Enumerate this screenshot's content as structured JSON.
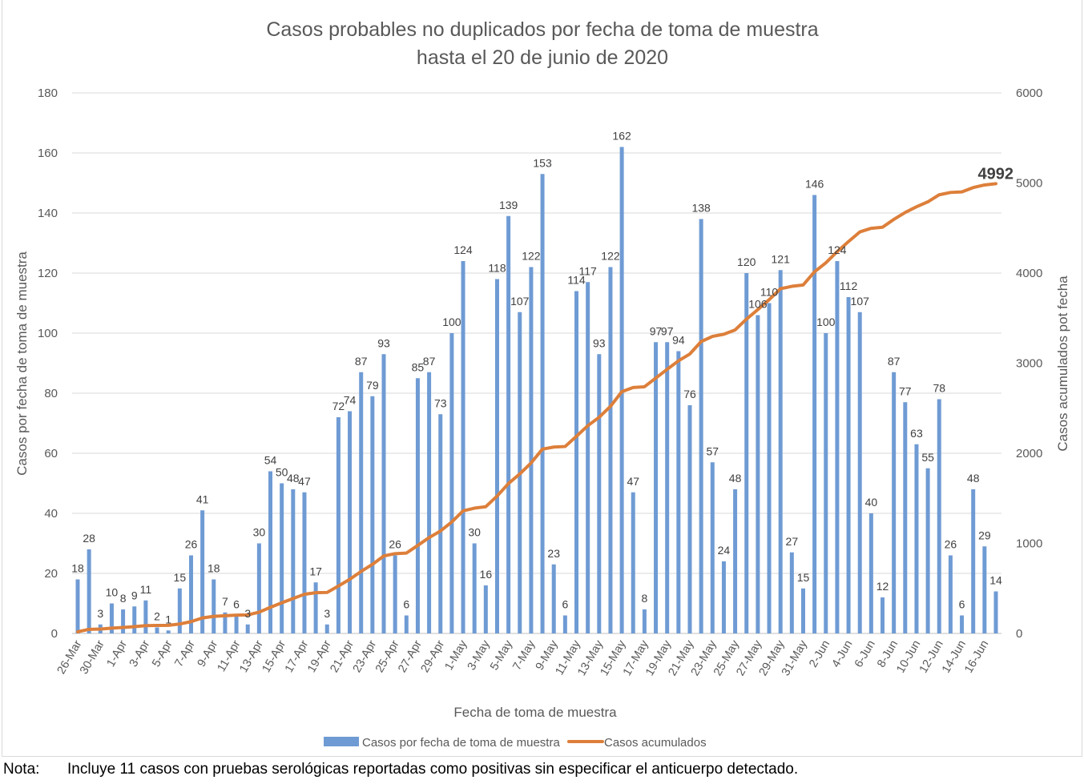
{
  "chart_data": {
    "type": "bar+line",
    "title": [
      "Casos probables no duplicados por fecha de toma de muestra",
      "hasta el 20 de junio de 2020"
    ],
    "xlabel": "Fecha de toma de muestra",
    "ylabel": "Casos por fecha de toma de muestra",
    "y2label": "Casos acumulados pot fecha",
    "ylim": [
      0,
      180
    ],
    "y_ticks": [
      0,
      20,
      40,
      60,
      80,
      100,
      120,
      140,
      160,
      180
    ],
    "y2lim": [
      0,
      6000
    ],
    "y2_ticks": [
      0,
      1000,
      2000,
      3000,
      4000,
      5000,
      6000
    ],
    "grid": true,
    "legend_position": "bottom",
    "categories": [
      "26-Mar",
      "29-Mar",
      "30-Mar",
      "31-Mar",
      "1-Apr",
      "2-Apr",
      "3-Apr",
      "4-Apr",
      "5-Apr",
      "6-Apr",
      "7-Apr",
      "8-Apr",
      "9-Apr",
      "10-Apr",
      "11-Apr",
      "12-Apr",
      "13-Apr",
      "14-Apr",
      "15-Apr",
      "16-Apr",
      "17-Apr",
      "18-Apr",
      "19-Apr",
      "20-Apr",
      "21-Apr",
      "22-Apr",
      "23-Apr",
      "24-Apr",
      "25-Apr",
      "26-Apr",
      "27-Apr",
      "28-Apr",
      "29-Apr",
      "30-Apr",
      "1-May",
      "2-May",
      "3-May",
      "4-May",
      "5-May",
      "6-May",
      "7-May",
      "8-May",
      "9-May",
      "10-May",
      "11-May",
      "12-May",
      "13-May",
      "14-May",
      "15-May",
      "16-May",
      "17-May",
      "18-May",
      "19-May",
      "20-May",
      "21-May",
      "22-May",
      "23-May",
      "24-May",
      "25-May",
      "26-May",
      "27-May",
      "28-May",
      "29-May",
      "30-May",
      "31-May",
      "1-Jun",
      "2-Jun",
      "3-Jun",
      "4-Jun",
      "5-Jun",
      "6-Jun",
      "7-Jun",
      "8-Jun",
      "9-Jun",
      "10-Jun",
      "11-Jun",
      "12-Jun",
      "13-Jun",
      "14-Jun",
      "15-Jun",
      "16-Jun",
      "17-Jun"
    ],
    "x_tick_labels": [
      "26-Mar",
      "30-Mar",
      "1-Apr",
      "3-Apr",
      "5-Apr",
      "7-Apr",
      "9-Apr",
      "11-Apr",
      "13-Apr",
      "15-Apr",
      "17-Apr",
      "19-Apr",
      "21-Apr",
      "23-Apr",
      "25-Apr",
      "27-Apr",
      "29-Apr",
      "1-May",
      "3-May",
      "5-May",
      "7-May",
      "9-May",
      "11-May",
      "13-May",
      "15-May",
      "17-May",
      "19-May",
      "21-May",
      "23-May",
      "25-May",
      "27-May",
      "29-May",
      "31-May",
      "2-Jun",
      "4-Jun",
      "6-Jun",
      "8-Jun",
      "10-Jun",
      "12-Jun",
      "14-Jun",
      "16-Jun"
    ],
    "series": [
      {
        "name": "Casos por fecha de toma de muestra",
        "type": "bar",
        "axis": "left",
        "color": "#6f9bd4",
        "values": [
          18,
          28,
          3,
          10,
          8,
          9,
          11,
          2,
          1,
          15,
          26,
          41,
          18,
          7,
          6,
          3,
          30,
          54,
          50,
          48,
          47,
          17,
          3,
          72,
          74,
          87,
          79,
          93,
          26,
          6,
          85,
          87,
          73,
          100,
          124,
          30,
          16,
          118,
          139,
          107,
          122,
          153,
          23,
          6,
          114,
          117,
          93,
          122,
          162,
          47,
          8,
          97,
          97,
          94,
          76,
          138,
          57,
          24,
          48,
          120,
          106,
          110,
          121,
          27,
          15,
          146,
          100,
          124,
          112,
          107,
          40,
          12,
          87,
          77,
          63,
          55,
          78,
          26,
          6,
          48,
          29,
          14
        ]
      },
      {
        "name": "Casos acumulados",
        "type": "line",
        "axis": "right",
        "color": "#dd7f3a",
        "cumulative_of": "Casos por fecha de toma de muestra",
        "final_value_label": "4992"
      }
    ]
  },
  "footnote": {
    "label": "Nota:",
    "text": "Incluye 11 casos con pruebas serológicas reportadas como positivas sin especificar el anticuerpo detectado."
  }
}
